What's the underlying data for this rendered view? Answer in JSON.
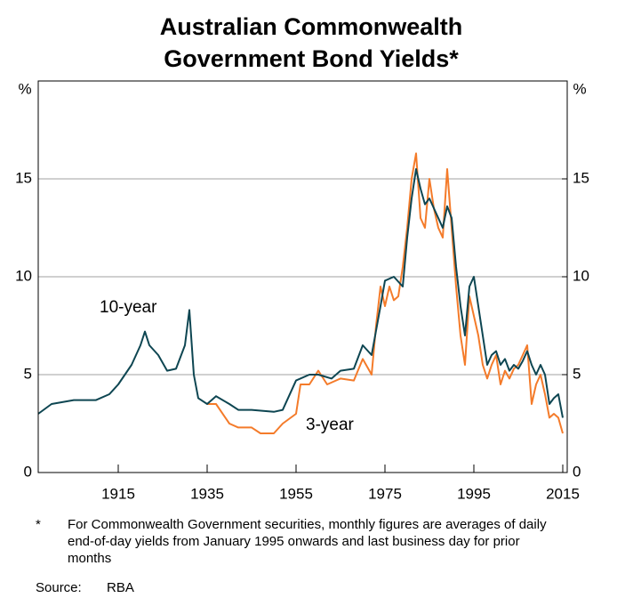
{
  "chart_data": {
    "type": "line",
    "title": "Australian Commonwealth Government Bond Yields*",
    "ylabel": "%",
    "y2label": "%",
    "xlim": [
      1897,
      2016
    ],
    "xticks": [
      1915,
      1935,
      1955,
      1975,
      1995,
      2015
    ],
    "ylim": [
      0,
      20
    ],
    "yticks": [
      0,
      5,
      10,
      15
    ],
    "y2lim": [
      0,
      20
    ],
    "y2ticks": [
      0,
      5,
      10,
      15
    ],
    "grid": true,
    "series": [
      {
        "name": "10-year",
        "color": "#0e4652",
        "x": [
          1897,
          1900,
          1905,
          1910,
          1913,
          1915,
          1918,
          1920,
          1921,
          1922,
          1924,
          1926,
          1928,
          1930,
          1931,
          1932,
          1933,
          1935,
          1937,
          1940,
          1942,
          1945,
          1950,
          1952,
          1955,
          1958,
          1960,
          1963,
          1965,
          1968,
          1970,
          1972,
          1974,
          1975,
          1977,
          1979,
          1980,
          1981,
          1982,
          1983,
          1984,
          1985,
          1986,
          1987,
          1988,
          1989,
          1990,
          1991,
          1992,
          1993,
          1994,
          1995,
          1996,
          1997,
          1998,
          1999,
          2000,
          2001,
          2002,
          2003,
          2004,
          2005,
          2006,
          2007,
          2008,
          2009,
          2010,
          2011,
          2012,
          2013,
          2014,
          2015
        ],
        "values": [
          3.0,
          3.5,
          3.7,
          3.7,
          4.0,
          4.5,
          5.5,
          6.5,
          7.2,
          6.5,
          6.0,
          5.2,
          5.3,
          6.5,
          8.3,
          5.0,
          3.8,
          3.5,
          3.9,
          3.5,
          3.2,
          3.2,
          3.1,
          3.2,
          4.7,
          5.0,
          5.0,
          4.8,
          5.2,
          5.3,
          6.5,
          6.0,
          8.5,
          9.8,
          10.0,
          9.5,
          12.0,
          14.0,
          15.5,
          14.5,
          13.7,
          14.0,
          13.5,
          13.0,
          12.5,
          13.6,
          13.0,
          10.5,
          8.5,
          7.0,
          9.5,
          10.0,
          8.5,
          7.0,
          5.5,
          6.0,
          6.2,
          5.5,
          5.8,
          5.2,
          5.5,
          5.3,
          5.7,
          6.2,
          5.5,
          5.0,
          5.5,
          5.0,
          3.5,
          3.8,
          4.0,
          2.8
        ]
      },
      {
        "name": "3-year",
        "color": "#f47b2a",
        "x": [
          1935,
          1937,
          1940,
          1942,
          1945,
          1947,
          1950,
          1952,
          1955,
          1956,
          1958,
          1960,
          1962,
          1965,
          1968,
          1970,
          1972,
          1973,
          1974,
          1975,
          1976,
          1977,
          1978,
          1979,
          1980,
          1981,
          1982,
          1983,
          1984,
          1985,
          1986,
          1987,
          1988,
          1989,
          1990,
          1991,
          1992,
          1993,
          1994,
          1995,
          1996,
          1997,
          1998,
          1999,
          2000,
          2001,
          2002,
          2003,
          2004,
          2005,
          2006,
          2007,
          2008,
          2009,
          2010,
          2011,
          2012,
          2013,
          2014,
          2015
        ],
        "values": [
          3.5,
          3.5,
          2.5,
          2.3,
          2.3,
          2.0,
          2.0,
          2.5,
          3.0,
          4.5,
          4.5,
          5.2,
          4.5,
          4.8,
          4.7,
          5.8,
          5.0,
          7.5,
          9.5,
          8.5,
          9.5,
          8.8,
          9.0,
          10.5,
          12.5,
          15.0,
          16.3,
          13.0,
          12.5,
          15.0,
          13.5,
          12.5,
          12.0,
          15.5,
          12.5,
          9.5,
          7.0,
          5.5,
          9.0,
          8.0,
          7.0,
          5.5,
          4.8,
          5.5,
          6.0,
          4.5,
          5.2,
          4.8,
          5.3,
          5.5,
          6.0,
          6.5,
          3.5,
          4.5,
          5.0,
          4.0,
          2.8,
          3.0,
          2.8,
          2.0
        ]
      }
    ],
    "footnote_marker": "*",
    "footnote": "For Commonwealth Government securities, monthly figures are averages of daily end-of-day yields from January 1995 onwards and last business day for prior months",
    "source_label": "Source:",
    "source": "RBA"
  }
}
